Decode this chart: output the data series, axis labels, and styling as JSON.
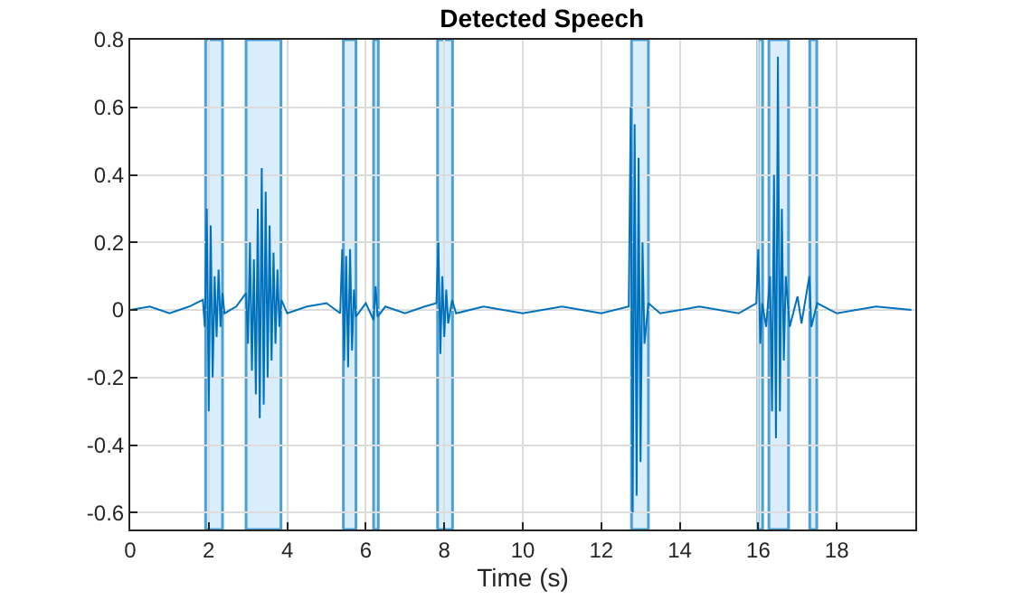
{
  "chart_data": {
    "type": "line",
    "title": "Detected Speech",
    "xlabel": "Time (s)",
    "x": [
      0,
      0.5,
      1,
      1.5,
      1.85,
      1.9,
      1.95,
      2.0,
      2.05,
      2.1,
      2.15,
      2.2,
      2.25,
      2.3,
      2.35,
      2.4,
      2.7,
      2.95,
      3.0,
      3.05,
      3.1,
      3.15,
      3.2,
      3.25,
      3.3,
      3.35,
      3.4,
      3.45,
      3.5,
      3.55,
      3.6,
      3.65,
      3.7,
      3.75,
      3.8,
      3.85,
      4.0,
      4.5,
      5.0,
      5.35,
      5.4,
      5.45,
      5.5,
      5.55,
      5.6,
      5.65,
      5.7,
      5.75,
      6.0,
      6.2,
      6.25,
      6.3,
      6.5,
      7.0,
      7.5,
      7.8,
      7.85,
      7.9,
      7.95,
      8.0,
      8.05,
      8.1,
      8.2,
      8.3,
      9.0,
      10,
      11,
      12,
      12.7,
      12.75,
      12.8,
      12.85,
      12.9,
      12.95,
      13.0,
      13.05,
      13.1,
      13.2,
      13.5,
      14.5,
      15.5,
      15.95,
      16.0,
      16.05,
      16.1,
      16.2,
      16.3,
      16.35,
      16.4,
      16.45,
      16.5,
      16.55,
      16.6,
      16.65,
      16.7,
      16.8,
      17.0,
      17.1,
      17.3,
      17.35,
      17.5,
      18,
      19,
      19.9
    ],
    "series": [
      {
        "color": "#0072bd",
        "values": [
          0,
          0.01,
          -0.01,
          0.01,
          0.03,
          -0.05,
          0.3,
          -0.3,
          0.25,
          -0.2,
          0.1,
          -0.08,
          0.12,
          -0.05,
          0.05,
          -0.01,
          0.01,
          0.05,
          -0.1,
          0.2,
          -0.18,
          0.15,
          -0.25,
          0.3,
          -0.32,
          0.42,
          -0.28,
          0.35,
          -0.2,
          0.25,
          -0.15,
          0.17,
          -0.1,
          0.12,
          -0.05,
          0.03,
          -0.01,
          0.01,
          0.02,
          -0.01,
          0.18,
          -0.15,
          0.16,
          -0.17,
          0.18,
          -0.12,
          0.06,
          -0.02,
          0.02,
          -0.03,
          0.07,
          -0.02,
          0.01,
          -0.01,
          0.01,
          0.02,
          0.2,
          -0.13,
          0.1,
          -0.08,
          0.06,
          -0.04,
          0.03,
          -0.01,
          0.01,
          -0.01,
          0.01,
          -0.01,
          0.01,
          0.6,
          -0.6,
          0.55,
          -0.55,
          0.45,
          -0.45,
          0.2,
          -0.1,
          0.02,
          -0.01,
          0.01,
          -0.01,
          0.02,
          0.18,
          -0.1,
          0.02,
          -0.05,
          0.1,
          -0.3,
          0.4,
          -0.38,
          0.75,
          -0.3,
          0.3,
          -0.15,
          0.1,
          -0.05,
          0.04,
          -0.04,
          0.1,
          -0.05,
          0.02,
          -0.01,
          0.01,
          0
        ]
      }
    ],
    "xlim": [
      0,
      20
    ],
    "xticks": [
      0,
      2,
      4,
      6,
      8,
      10,
      12,
      14,
      16,
      18
    ],
    "ylim": [
      -0.65,
      0.8
    ],
    "yticks": [
      -0.6,
      -0.4,
      -0.2,
      0,
      0.2,
      0.4,
      0.6,
      0.8
    ],
    "grid": true,
    "marker": "none",
    "line_style": "solid",
    "bands": [
      {
        "axis": "x",
        "from": 1.92,
        "to": 2.35,
        "color": "#d9eefa"
      },
      {
        "axis": "x",
        "from": 2.95,
        "to": 3.84,
        "color": "#d9eefa"
      },
      {
        "axis": "x",
        "from": 5.43,
        "to": 5.75,
        "color": "#d9eefa"
      },
      {
        "axis": "x",
        "from": 6.2,
        "to": 6.32,
        "color": "#d9eefa"
      },
      {
        "axis": "x",
        "from": 7.83,
        "to": 8.21,
        "color": "#d9eefa"
      },
      {
        "axis": "x",
        "from": 12.77,
        "to": 13.2,
        "color": "#d9eefa"
      },
      {
        "axis": "x",
        "from": 15.99,
        "to": 16.11,
        "color": "#d9eefa"
      },
      {
        "axis": "x",
        "from": 16.27,
        "to": 16.77,
        "color": "#d9eefa"
      },
      {
        "axis": "x",
        "from": 17.31,
        "to": 17.49,
        "color": "#d9eefa"
      }
    ]
  }
}
